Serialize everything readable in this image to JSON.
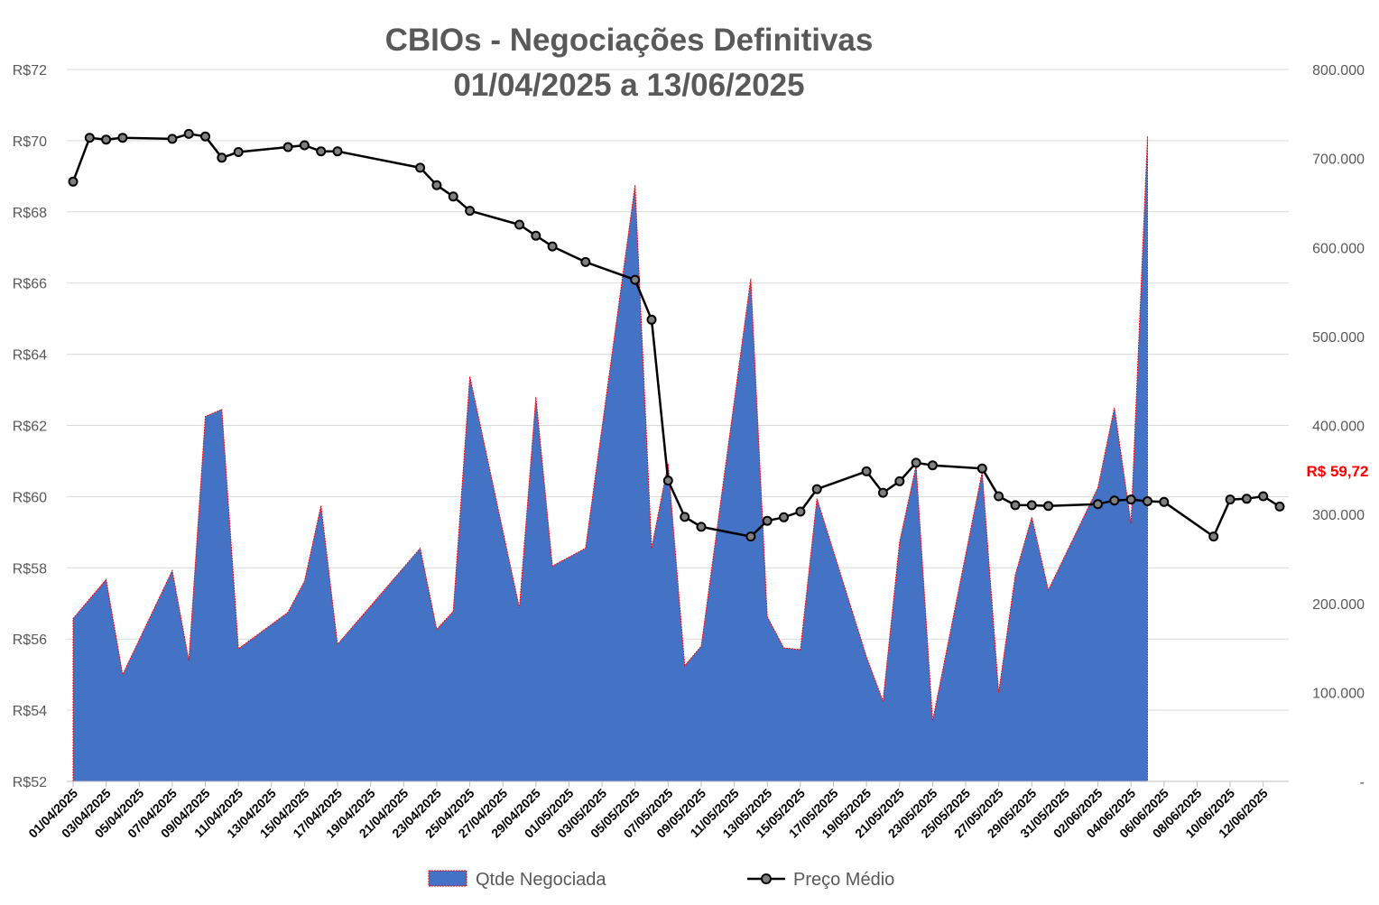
{
  "chart_data": {
    "type": "area+line",
    "title": "CBIOs - Negociações Definitivas",
    "subtitle": "01/04/2025 a 13/06/2025",
    "y_left": {
      "range": [
        52,
        72
      ],
      "ticks": [
        52,
        54,
        56,
        58,
        60,
        62,
        64,
        66,
        68,
        70,
        72
      ],
      "tick_labels": [
        "R$52",
        "R$54",
        "R$56",
        "R$58",
        "R$60",
        "R$62",
        "R$64",
        "R$66",
        "R$68",
        "R$70",
        "R$72"
      ]
    },
    "y_right": {
      "range": [
        0,
        800000
      ],
      "ticks": [
        0,
        100000,
        200000,
        300000,
        400000,
        500000,
        600000,
        700000,
        800000
      ],
      "tick_labels": [
        "-",
        "100.000",
        "200.000",
        "300.000",
        "400.000",
        "500.000",
        "600.000",
        "700.000",
        "800.000"
      ]
    },
    "x_axis": {
      "start": "01/04/2025",
      "end": "13/06/2025",
      "tick_labels": [
        "01/04/2025",
        "03/04/2025",
        "05/04/2025",
        "07/04/2025",
        "09/04/2025",
        "11/04/2025",
        "13/04/2025",
        "15/04/2025",
        "17/04/2025",
        "19/04/2025",
        "21/04/2025",
        "23/04/2025",
        "25/04/2025",
        "27/04/2025",
        "29/04/2025",
        "01/05/2025",
        "03/05/2025",
        "05/05/2025",
        "07/05/2025",
        "09/05/2025",
        "11/05/2025",
        "13/05/2025",
        "15/05/2025",
        "17/05/2025",
        "19/05/2025",
        "21/05/2025",
        "23/05/2025",
        "25/05/2025",
        "27/05/2025",
        "29/05/2025",
        "31/05/2025",
        "02/06/2025",
        "04/06/2025",
        "06/06/2025",
        "08/06/2025",
        "10/06/2025",
        "12/06/2025"
      ]
    },
    "grid": true,
    "legend_position": "bottom",
    "series": [
      {
        "name": "Qtde Negociada",
        "kind": "area",
        "axis": "right",
        "color": "#4472c4",
        "edge_color": "#ff0000",
        "points": [
          [
            "01/04/2025",
            183000
          ],
          [
            "02/04/2025",
            205000
          ],
          [
            "03/04/2025",
            227000
          ],
          [
            "04/04/2025",
            120000
          ],
          [
            "07/04/2025",
            237000
          ],
          [
            "08/04/2025",
            136000
          ],
          [
            "09/04/2025",
            410000
          ],
          [
            "10/04/2025",
            418000
          ],
          [
            "11/04/2025",
            149000
          ],
          [
            "14/04/2025",
            190000
          ],
          [
            "15/04/2025",
            225000
          ],
          [
            "16/04/2025",
            310000
          ],
          [
            "17/04/2025",
            154000
          ],
          [
            "22/04/2025",
            262000
          ],
          [
            "23/04/2025",
            171000
          ],
          [
            "24/04/2025",
            191000
          ],
          [
            "25/04/2025",
            455000
          ],
          [
            "28/04/2025",
            195000
          ],
          [
            "29/04/2025",
            432000
          ],
          [
            "30/04/2025",
            242000
          ],
          [
            "02/05/2025",
            262000
          ],
          [
            "05/05/2025",
            670000
          ],
          [
            "06/05/2025",
            262000
          ],
          [
            "07/05/2025",
            357000
          ],
          [
            "08/05/2025",
            130000
          ],
          [
            "09/05/2025",
            152000
          ],
          [
            "12/05/2025",
            565000
          ],
          [
            "13/05/2025",
            185000
          ],
          [
            "14/05/2025",
            150000
          ],
          [
            "15/05/2025",
            148000
          ],
          [
            "16/05/2025",
            318000
          ],
          [
            "19/05/2025",
            140000
          ],
          [
            "20/05/2025",
            90000
          ],
          [
            "21/05/2025",
            269000
          ],
          [
            "22/05/2025",
            355000
          ],
          [
            "23/05/2025",
            68000
          ],
          [
            "26/05/2025",
            348000
          ],
          [
            "27/05/2025",
            100000
          ],
          [
            "28/05/2025",
            232000
          ],
          [
            "29/05/2025",
            297000
          ],
          [
            "30/05/2025",
            215000
          ],
          [
            "02/06/2025",
            330000
          ],
          [
            "03/06/2025",
            420000
          ],
          [
            "04/06/2025",
            290000
          ],
          [
            "05/06/2025",
            725000
          ]
        ]
      },
      {
        "name": "Preço Médio",
        "kind": "line",
        "axis": "left",
        "color": "#000000",
        "marker_fill": "#808080",
        "points": [
          [
            "01/04/2025",
            68.85
          ],
          [
            "02/04/2025",
            70.08
          ],
          [
            "03/04/2025",
            70.03
          ],
          [
            "04/04/2025",
            70.08
          ],
          [
            "07/04/2025",
            70.05
          ],
          [
            "08/04/2025",
            70.19
          ],
          [
            "09/04/2025",
            70.12
          ],
          [
            "10/04/2025",
            69.52
          ],
          [
            "11/04/2025",
            69.68
          ],
          [
            "14/04/2025",
            69.82
          ],
          [
            "15/04/2025",
            69.87
          ],
          [
            "16/04/2025",
            69.7
          ],
          [
            "17/04/2025",
            69.7
          ],
          [
            "22/04/2025",
            69.24
          ],
          [
            "23/04/2025",
            68.75
          ],
          [
            "24/04/2025",
            68.43
          ],
          [
            "25/04/2025",
            68.03
          ],
          [
            "28/04/2025",
            67.64
          ],
          [
            "29/04/2025",
            67.33
          ],
          [
            "30/04/2025",
            67.03
          ],
          [
            "02/05/2025",
            66.59
          ],
          [
            "05/05/2025",
            66.09
          ],
          [
            "06/05/2025",
            64.97
          ],
          [
            "07/05/2025",
            60.45
          ],
          [
            "08/05/2025",
            59.43
          ],
          [
            "09/05/2025",
            59.15
          ],
          [
            "12/05/2025",
            58.88
          ],
          [
            "13/05/2025",
            59.32
          ],
          [
            "14/05/2025",
            59.42
          ],
          [
            "15/05/2025",
            59.58
          ],
          [
            "16/05/2025",
            60.21
          ],
          [
            "19/05/2025",
            60.71
          ],
          [
            "20/05/2025",
            60.11
          ],
          [
            "21/05/2025",
            60.43
          ],
          [
            "22/05/2025",
            60.95
          ],
          [
            "23/05/2025",
            60.88
          ],
          [
            "26/05/2025",
            60.79
          ],
          [
            "27/05/2025",
            60.01
          ],
          [
            "28/05/2025",
            59.76
          ],
          [
            "29/05/2025",
            59.76
          ],
          [
            "30/05/2025",
            59.74
          ],
          [
            "02/06/2025",
            59.79
          ],
          [
            "03/06/2025",
            59.89
          ],
          [
            "04/06/2025",
            59.92
          ],
          [
            "05/06/2025",
            59.87
          ],
          [
            "06/06/2025",
            59.85
          ],
          [
            "09/06/2025",
            58.88
          ],
          [
            "10/06/2025",
            59.92
          ],
          [
            "11/06/2025",
            59.94
          ],
          [
            "12/06/2025",
            60.01
          ],
          [
            "13/06/2025",
            59.72
          ]
        ]
      }
    ],
    "annotations": [
      {
        "text": "R$ 59,72",
        "color": "#ff0000"
      }
    ]
  }
}
